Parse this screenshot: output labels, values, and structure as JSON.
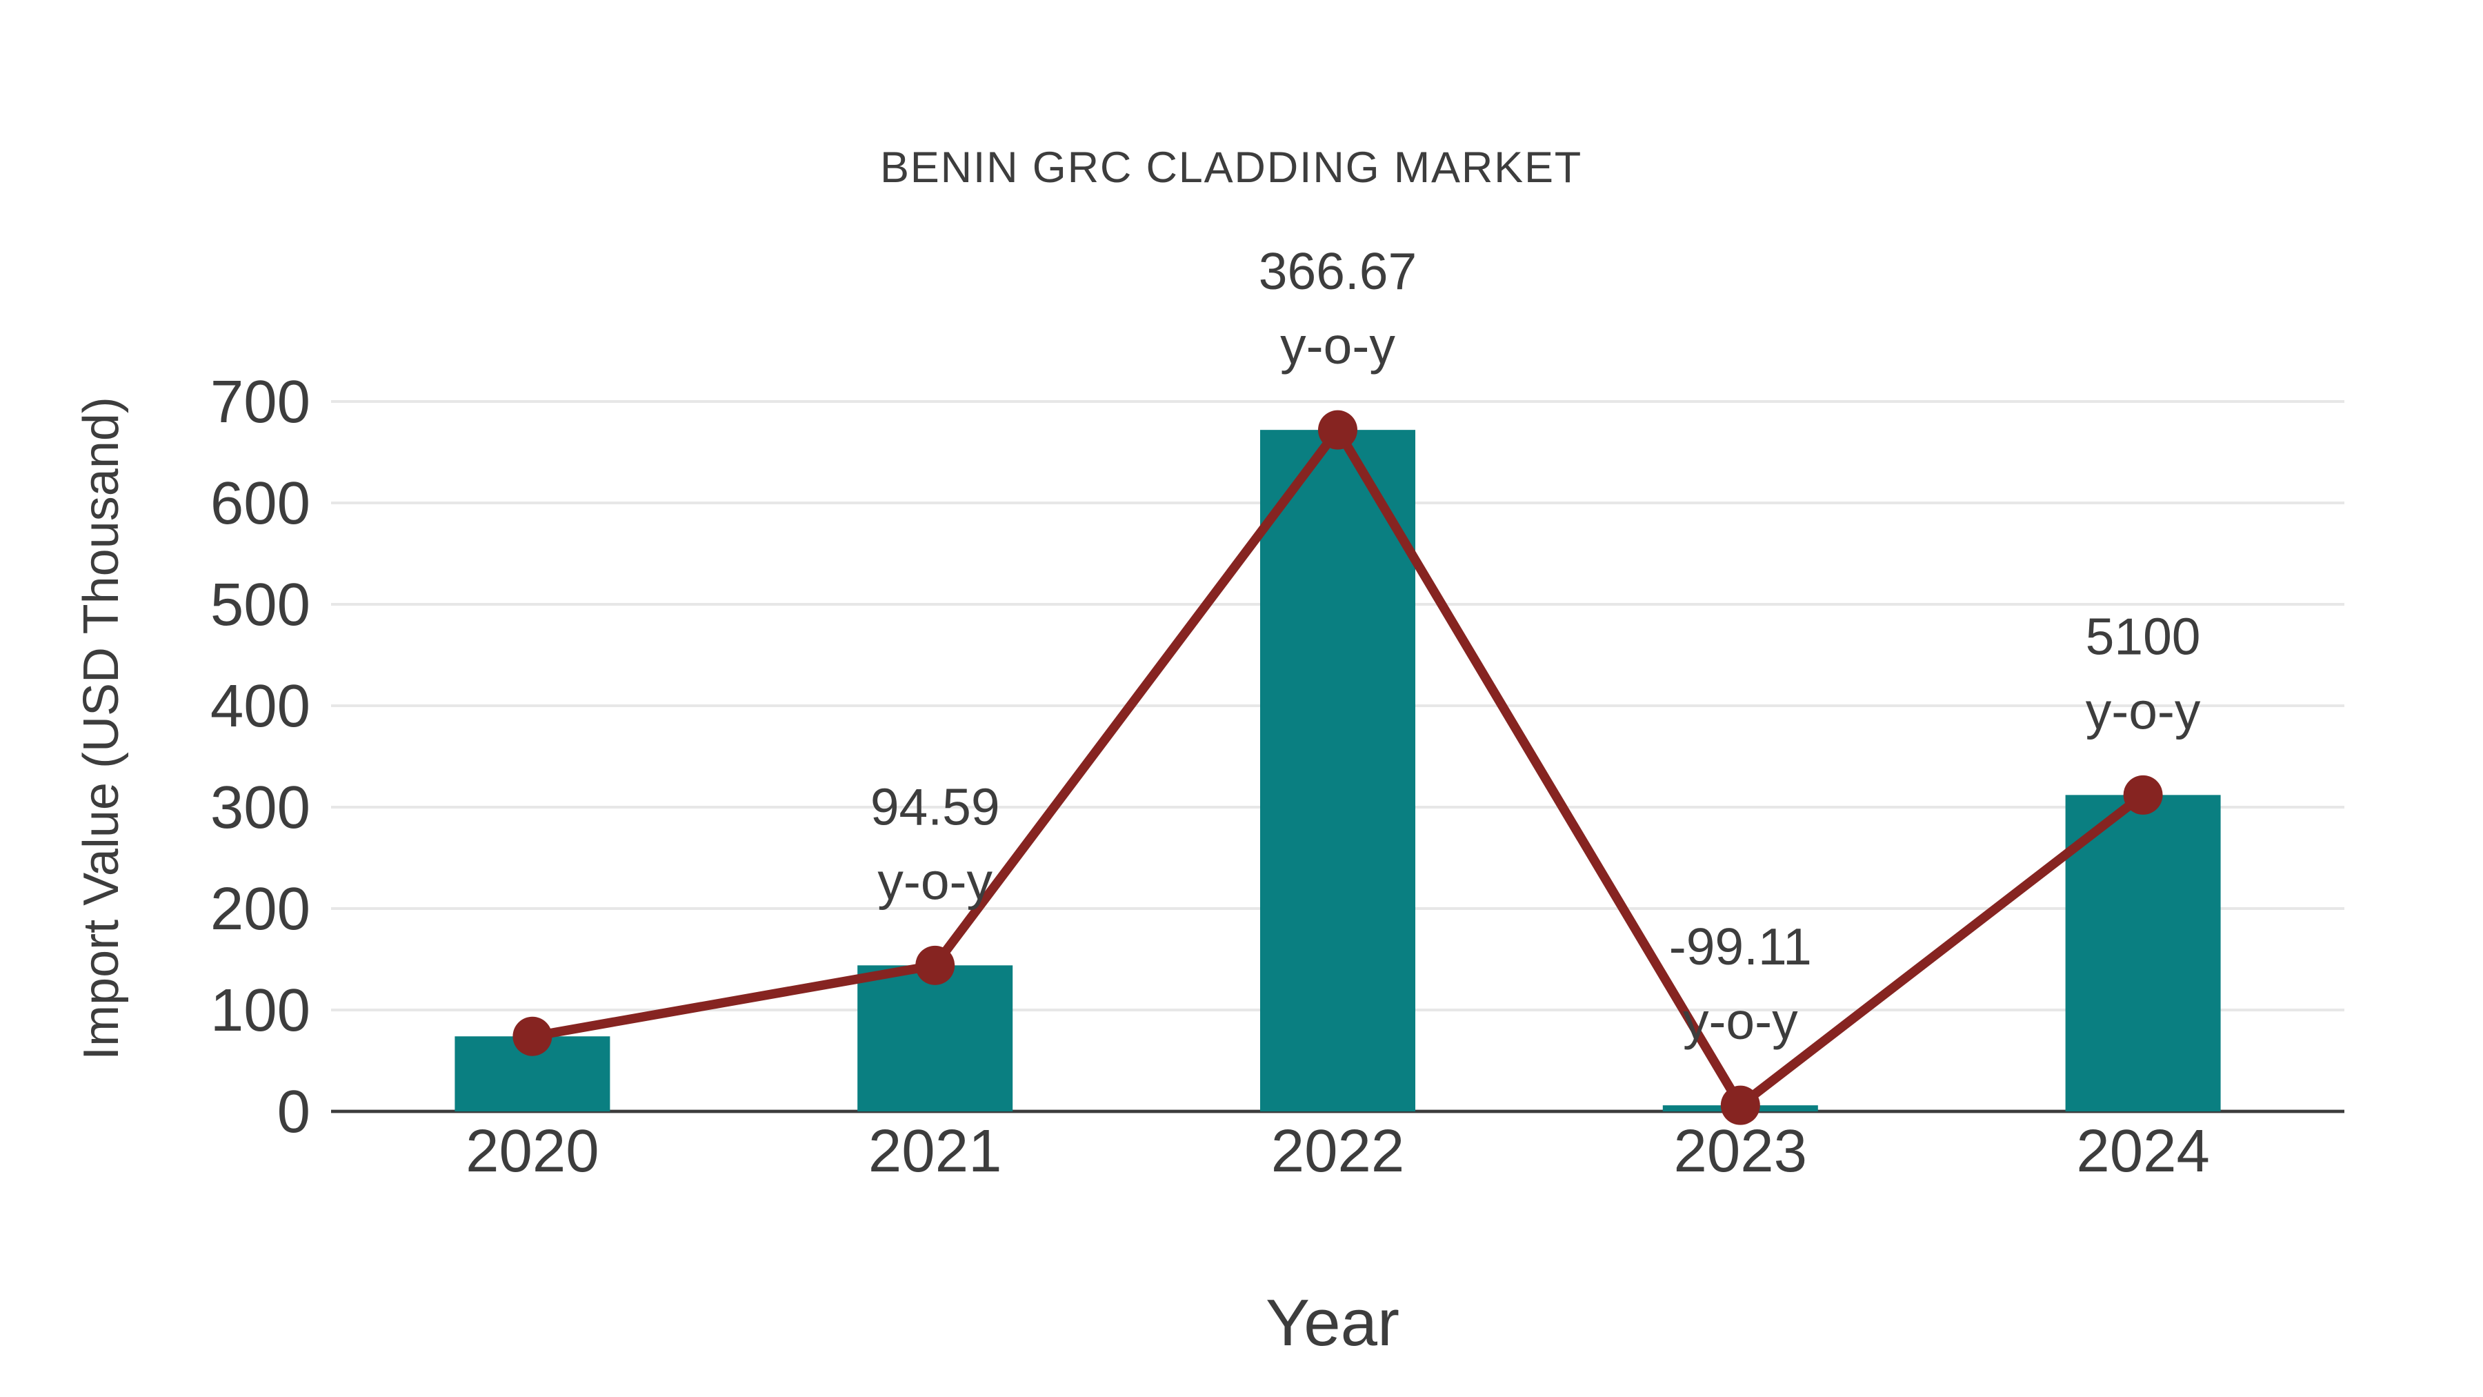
{
  "chart_data": {
    "type": "bar",
    "title": "BENIN GRC CLADDING MARKET",
    "xlabel": "Year",
    "ylabel": "Import Value (USD Thousand)",
    "categories": [
      "2020",
      "2021",
      "2022",
      "2023",
      "2024"
    ],
    "series": [
      {
        "name": "import-value-bars",
        "type": "bar",
        "values": [
          74,
          144,
          672,
          6,
          312
        ]
      },
      {
        "name": "import-value-trend",
        "type": "line",
        "values": [
          74,
          144,
          672,
          6,
          312
        ]
      }
    ],
    "annotations": [
      {
        "category": "2021",
        "value_label": "94.59",
        "suffix_label": "y-o-y"
      },
      {
        "category": "2022",
        "value_label": "366.67",
        "suffix_label": "y-o-y"
      },
      {
        "category": "2023",
        "value_label": "-99.11",
        "suffix_label": "y-o-y"
      },
      {
        "category": "2024",
        "value_label": "5100",
        "suffix_label": "y-o-y"
      }
    ],
    "ylim": [
      0,
      700
    ],
    "yticks": [
      0,
      100,
      200,
      300,
      400,
      500,
      600,
      700
    ],
    "grid": true,
    "legend_position": "none",
    "colors": {
      "bar": "#0a7f81",
      "line": "#862421",
      "marker": "#862421",
      "grid": "#e7e7e7",
      "axis": "#3c3c3c",
      "text": "#3d3d3d"
    }
  }
}
